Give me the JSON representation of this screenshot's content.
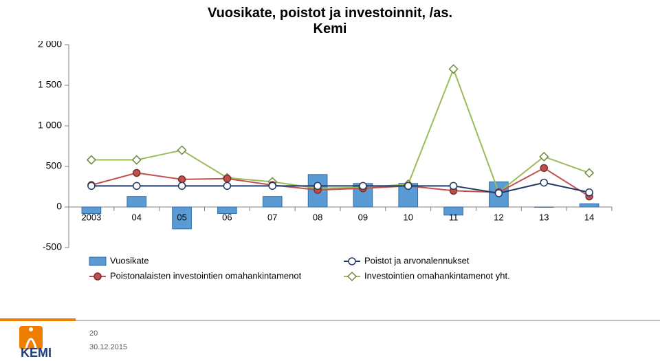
{
  "title_line1": "Vuosikate, poistot ja investoinnit, /as.",
  "title_line2": "Kemi",
  "title_fontsize": 20,
  "page_number": "20",
  "page_date": "30.12.2015",
  "chart": {
    "type": "bar+line",
    "ylim": [
      -500,
      2000
    ],
    "ytick_step": 500,
    "yticks": [
      -500,
      0,
      500,
      1000,
      1500,
      2000
    ],
    "ytick_labels": [
      "-500",
      "0",
      "500",
      "1 000",
      "1 500",
      "2 000"
    ],
    "categories": [
      "2003",
      "04",
      "05",
      "06",
      "07",
      "08",
      "09",
      "10",
      "11",
      "12",
      "13",
      "14"
    ],
    "series": {
      "vuosikate_bars": {
        "label": "Vuosikate",
        "values": [
          -80,
          130,
          -270,
          -80,
          130,
          400,
          290,
          290,
          -100,
          310,
          0,
          40
        ],
        "fill": "#5b9bd5",
        "border": "#2e6ca4",
        "bar_width": 0.42
      },
      "poistot": {
        "label": "Poistot ja arvonalennukset",
        "values": [
          260,
          260,
          260,
          260,
          260,
          260,
          260,
          260,
          260,
          170,
          300,
          180
        ],
        "color": "#1f3864",
        "marker_fill": "#ffffff",
        "marker_stroke": "#1f3864",
        "line_width": 2,
        "marker_size": 5
      },
      "poistonalaisten": {
        "label": "Poistonalaisten investointien omahankintamenot",
        "values": [
          270,
          420,
          340,
          350,
          270,
          210,
          230,
          260,
          200,
          180,
          480,
          130
        ],
        "color": "#c0504d",
        "marker_fill": "#c0504d",
        "marker_stroke": "#7a2e2c",
        "line_width": 2,
        "marker_size": 5
      },
      "investoinnit_yht": {
        "label": "Investointien omahankintamenot yht.",
        "values": [
          580,
          580,
          700,
          360,
          310,
          230,
          240,
          280,
          1700,
          180,
          620,
          420
        ],
        "color": "#9bbb59",
        "marker_fill": "#ffffff",
        "marker_stroke": "#70893c",
        "marker_shape": "diamond",
        "line_width": 2,
        "marker_size": 6
      }
    },
    "axis_color": "#808080",
    "tick_color": "#808080",
    "background": "#ffffff"
  },
  "legend_layout": {
    "col1_x": 100,
    "col2_x": 470,
    "row1_y": 320,
    "row2_y": 342
  },
  "logo": {
    "text": "KEMI",
    "text_color": "#1f3d7a",
    "box_color": "#ef7d00",
    "fontsize": 18
  }
}
